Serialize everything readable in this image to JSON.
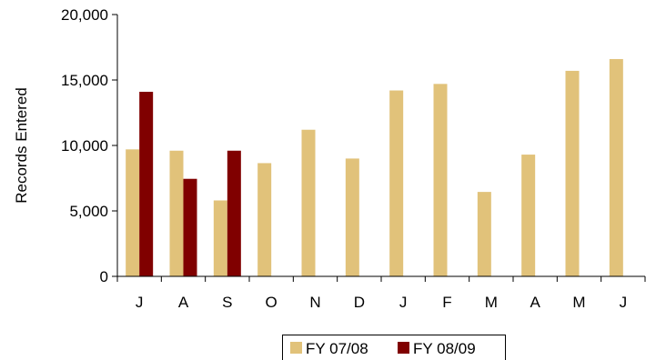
{
  "chart_data": {
    "type": "bar",
    "ylabel": "Records Entered",
    "ylim": [
      0,
      20000
    ],
    "yticks": [
      0,
      5000,
      10000,
      15000,
      20000
    ],
    "ytick_labels": [
      "0",
      "5,000",
      "10,000",
      "15,000",
      "20,000"
    ],
    "categories": [
      "J",
      "A",
      "S",
      "O",
      "N",
      "D",
      "J",
      "F",
      "M",
      "A",
      "M",
      "J"
    ],
    "series": [
      {
        "name": "FY 07/08",
        "color": "#E1C27A",
        "values": [
          9700,
          9600,
          5800,
          8650,
          11200,
          9000,
          14200,
          14700,
          6450,
          9300,
          15700,
          16600
        ]
      },
      {
        "name": "FY 08/09",
        "color": "#800000",
        "values": [
          14100,
          7450,
          9600,
          null,
          null,
          null,
          null,
          null,
          null,
          null,
          null,
          null
        ]
      }
    ],
    "legend_position": "bottom",
    "grid": false
  }
}
